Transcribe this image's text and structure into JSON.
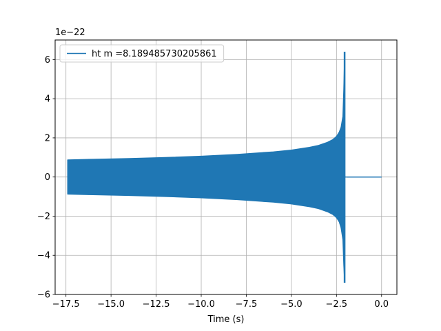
{
  "chart_data": {
    "type": "line",
    "title": "",
    "xlabel": "Time (s)",
    "ylabel": "",
    "y_offset_text": "1e−22",
    "xlim": [
      -18.1,
      0.85
    ],
    "ylim": [
      -6,
      7
    ],
    "x_ticks": [
      -17.5,
      -15.0,
      -12.5,
      -10.0,
      -7.5,
      -5.0,
      -2.5,
      0.0
    ],
    "x_tick_labels": [
      "−17.5",
      "−15.0",
      "−12.5",
      "−10.0",
      "−7.5",
      "−5.0",
      "−2.5",
      "0.0"
    ],
    "y_ticks": [
      -6,
      -4,
      -2,
      0,
      2,
      4,
      6
    ],
    "y_tick_labels": [
      "−6",
      "−4",
      "−2",
      "0",
      "2",
      "4",
      "6"
    ],
    "grid": true,
    "legend_position": "upper-left",
    "series": [
      {
        "name": "ht m =8.189485730205861",
        "color": "#1f77b4",
        "envelope": {
          "t": [
            -17.4,
            -16.0,
            -14.0,
            -12.0,
            -10.0,
            -8.0,
            -6.0,
            -5.0,
            -4.0,
            -3.5,
            -3.0,
            -2.7,
            -2.5,
            -2.35,
            -2.25,
            -2.15,
            -2.1,
            -2.05
          ],
          "upper": [
            0.88,
            0.91,
            0.95,
            1.0,
            1.07,
            1.16,
            1.29,
            1.38,
            1.52,
            1.62,
            1.78,
            1.92,
            2.08,
            2.3,
            2.55,
            3.1,
            4.5,
            6.4
          ],
          "lower": [
            -0.88,
            -0.91,
            -0.95,
            -1.0,
            -1.07,
            -1.16,
            -1.29,
            -1.38,
            -1.52,
            -1.62,
            -1.78,
            -1.92,
            -2.08,
            -2.3,
            -2.6,
            -3.2,
            -4.5,
            -5.4
          ]
        },
        "ringdown_end_t": -1.95,
        "flat_segment": {
          "t": [
            -1.95,
            0.0
          ],
          "value": 0.0
        }
      }
    ]
  }
}
